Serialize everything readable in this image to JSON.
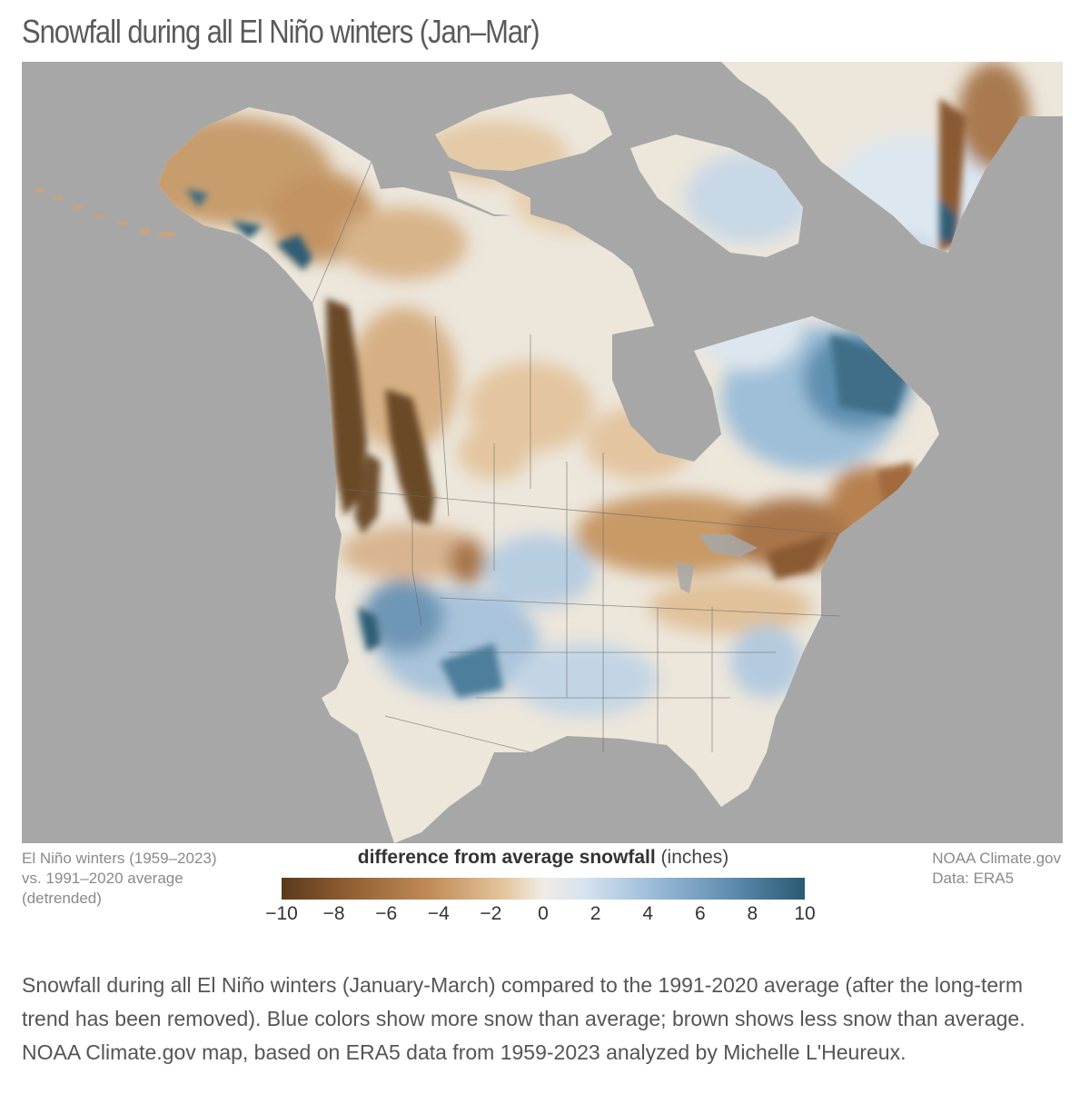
{
  "title": "Snowfall during all El Niño winters (Jan–Mar)",
  "notes": {
    "left": [
      "El Niño winters (1959–2023)",
      "vs. 1991–2020 average",
      "(detrended)"
    ],
    "right": [
      "NOAA Climate.gov",
      "Data: ERA5"
    ]
  },
  "legend": {
    "title_bold": "difference from average snowfall",
    "title_unit": "(inches)",
    "ticks": [
      "−10",
      "−8",
      "−6",
      "−4",
      "−2",
      "0",
      "2",
      "4",
      "6",
      "8",
      "10"
    ],
    "range": [
      -10,
      10
    ],
    "colors": {
      "low": "#5a3a1c",
      "mid": "#f0ece5",
      "high": "#2a5a72"
    }
  },
  "map": {
    "region": "North America",
    "background_color": "#a7a7a7"
  },
  "caption": "Snowfall during all El Niño winters (January-March) compared to the 1991-2020 average (after the long-term trend has been removed). Blue colors show more snow than average; brown shows less snow than average. NOAA Climate.gov map, based on ERA5 data from 1959-2023 analyzed by Michelle L'Heureux."
}
